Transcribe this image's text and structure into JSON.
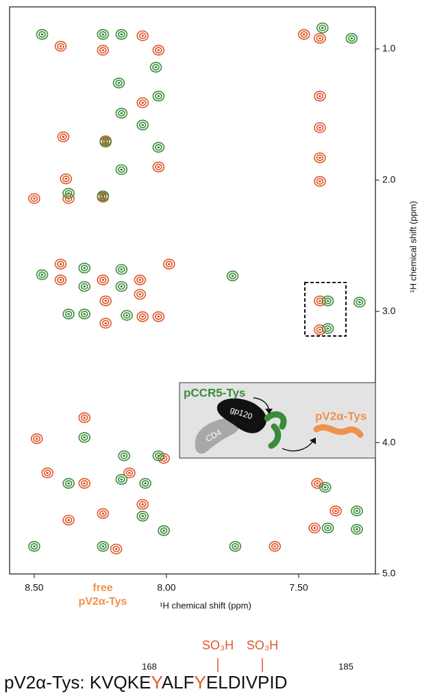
{
  "chart_data": {
    "type": "contour",
    "xlabel": "¹H chemical shift (ppm)",
    "ylabel": "¹H chemical shift (ppm)",
    "xlim": [
      8.593,
      7.21
    ],
    "ylim": [
      0.68,
      5.0
    ],
    "xticks": [
      {
        "value": 8.5,
        "label": "8.50"
      },
      {
        "value": 8.0,
        "label": "8.00"
      },
      {
        "value": 7.5,
        "label": "7.50"
      }
    ],
    "yticks": [
      {
        "value": 1,
        "label": "1.0"
      },
      {
        "value": 2,
        "label": "2.0"
      },
      {
        "value": 3,
        "label": "3.0"
      },
      {
        "value": 4,
        "label": "4.0"
      },
      {
        "value": 5,
        "label": "5.0"
      }
    ],
    "series": [
      {
        "color": "#e0562a",
        "x": [
          8.4,
          8.24,
          8.09,
          8.03,
          7.48,
          7.42,
          7.42,
          7.42,
          7.42,
          7.42,
          8.38,
          8.5,
          8.37,
          8.24,
          8.03,
          8.39,
          8.23,
          8.09,
          8.4,
          8.4,
          8.24,
          8.1,
          7.99,
          8.23,
          8.23,
          8.1,
          8.09,
          8.03,
          7.42,
          7.42,
          8.49,
          8.31,
          8.45,
          8.31,
          8.14,
          8.01,
          8.37,
          8.24,
          8.09,
          7.43,
          7.36,
          7.44,
          7.59,
          8.19
        ],
        "values": [
          0.98,
          1.01,
          0.9,
          1.01,
          0.89,
          0.92,
          1.36,
          1.6,
          2.01,
          1.83,
          1.99,
          2.14,
          2.14,
          2.13,
          1.9,
          1.67,
          1.7,
          1.41,
          2.64,
          2.76,
          2.76,
          2.76,
          2.64,
          2.92,
          3.09,
          2.87,
          3.04,
          3.04,
          2.92,
          3.14,
          3.97,
          3.81,
          4.23,
          4.31,
          4.23,
          4.12,
          4.59,
          4.54,
          4.47,
          4.31,
          4.52,
          4.65,
          4.79,
          4.81
        ]
      },
      {
        "color": "#3a8c3a",
        "x": [
          8.47,
          8.24,
          8.17,
          7.41,
          7.3,
          8.18,
          8.04,
          8.03,
          8.17,
          8.09,
          8.23,
          8.03,
          8.17,
          8.37,
          8.24,
          8.47,
          8.31,
          8.31,
          8.17,
          8.17,
          8.37,
          8.31,
          8.15,
          7.75,
          7.39,
          7.27,
          7.39,
          8.31,
          8.16,
          8.03,
          8.37,
          8.17,
          8.08,
          8.09,
          8.01,
          7.74,
          7.4,
          7.28,
          7.39,
          7.28,
          8.24,
          8.5
        ],
        "values": [
          0.89,
          0.89,
          0.89,
          0.84,
          0.92,
          1.26,
          1.14,
          1.36,
          1.49,
          1.58,
          1.71,
          1.75,
          1.92,
          2.1,
          2.12,
          2.72,
          2.67,
          2.81,
          2.68,
          2.81,
          3.02,
          3.02,
          3.03,
          2.73,
          2.92,
          2.93,
          3.13,
          3.96,
          4.1,
          4.1,
          4.31,
          4.28,
          4.31,
          4.56,
          4.67,
          4.79,
          4.34,
          4.52,
          4.65,
          4.66,
          4.79,
          4.79
        ]
      }
    ],
    "annotations": [
      "free",
      "pV2α-Tys",
      "pCCR5-Tys",
      "pV2α-Tys",
      "gp120",
      "CD4",
      "SO₃H",
      "SO₃H",
      "168",
      "185"
    ],
    "sequence": [
      "pV2α-Tys: KVQKE",
      "Y",
      "ALF",
      "Y",
      "ELDIVPID"
    ]
  }
}
